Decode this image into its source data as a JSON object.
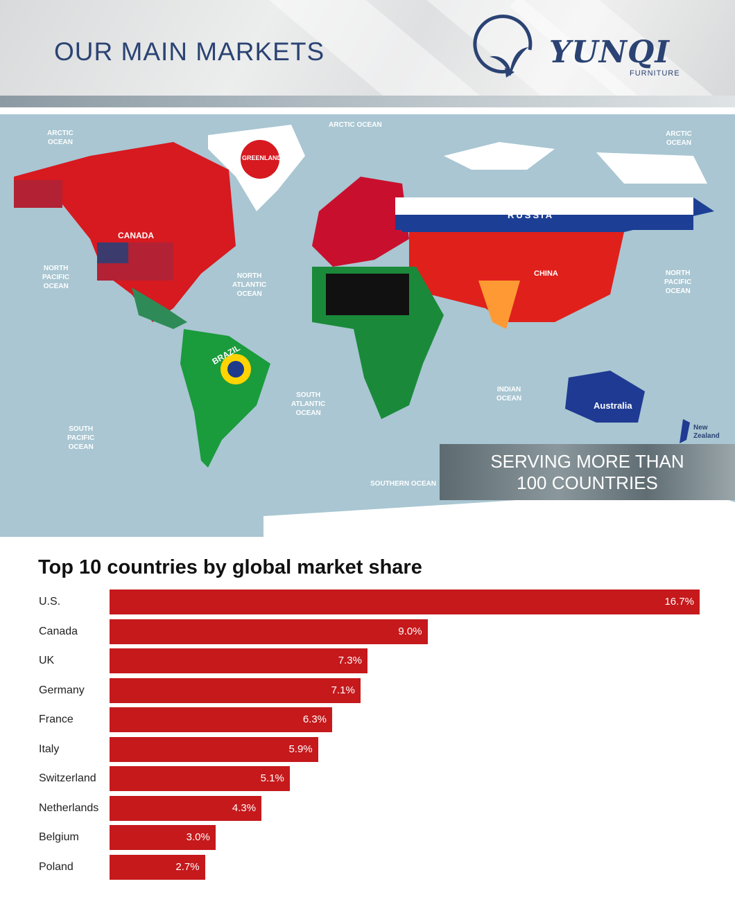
{
  "banner": {
    "title": "OUR MAIN MARKETS",
    "logo_name": "YUNQI",
    "logo_sub": "FURNITURE"
  },
  "map": {
    "ocean_labels": [
      "ARCTIC\nOCEAN",
      "ARCTIC OCEAN",
      "ARCTIC\nOCEAN",
      "NORTH\nPACIFIC\nOCEAN",
      "NORTH\nATLANTIC\nOCEAN",
      "NORTH\nPACIFIC\nOCEAN",
      "SOUTH\nATLANTIC\nOCEAN",
      "INDIAN\nOCEAN",
      "SOUTH\nPACIFIC\nOCEAN",
      "SOUTHERN OCEAN"
    ],
    "country_labels": [
      "GREENLAND",
      "CANADA",
      "RUSSIA",
      "CHINA",
      "BRAZIL",
      "Australia",
      "New\nZealand"
    ],
    "banner_text": [
      "SERVING MORE THAN",
      "100 COUNTRIES"
    ]
  },
  "chart_data": {
    "type": "bar",
    "orientation": "horizontal",
    "title": "Top 10 countries by global market share",
    "categories": [
      "U.S.",
      "Canada",
      "UK",
      "Germany",
      "France",
      "Italy",
      "Switzerland",
      "Netherlands",
      "Belgium",
      "Poland"
    ],
    "values": [
      16.7,
      9.0,
      7.3,
      7.1,
      6.3,
      5.9,
      5.1,
      4.3,
      3.0,
      2.7
    ],
    "labels": [
      "16.7%",
      "9.0%",
      "7.3%",
      "7.1%",
      "6.3%",
      "5.9%",
      "5.1%",
      "4.3%",
      "3.0%",
      "2.7%"
    ],
    "unit": "%",
    "color": "#c5191c",
    "grid": false
  }
}
